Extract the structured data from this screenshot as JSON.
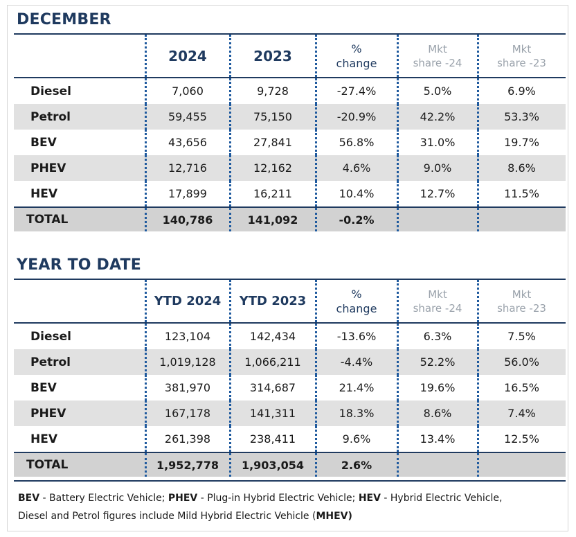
{
  "december": {
    "title": "DECEMBER",
    "headers": {
      "label": "",
      "col1": "2024",
      "col2": "2023",
      "col3_line1": "%",
      "col3_line2": "change",
      "col4_line1": "Mkt",
      "col4_line2": "share -24",
      "col5_line1": "Mkt",
      "col5_line2": "share -23"
    },
    "rows": [
      {
        "fuel": "Diesel",
        "v1": "7,060",
        "v2": "9,728",
        "pct": "-27.4%",
        "m1": "5.0%",
        "m2": "6.9%"
      },
      {
        "fuel": "Petrol",
        "v1": "59,455",
        "v2": "75,150",
        "pct": "-20.9%",
        "m1": "42.2%",
        "m2": "53.3%"
      },
      {
        "fuel": "BEV",
        "v1": "43,656",
        "v2": "27,841",
        "pct": "56.8%",
        "m1": "31.0%",
        "m2": "19.7%"
      },
      {
        "fuel": "PHEV",
        "v1": "12,716",
        "v2": "12,162",
        "pct": "4.6%",
        "m1": "9.0%",
        "m2": "8.6%"
      },
      {
        "fuel": "HEV",
        "v1": "17,899",
        "v2": "16,211",
        "pct": "10.4%",
        "m1": "12.7%",
        "m2": "11.5%"
      }
    ],
    "total": {
      "label": "TOTAL",
      "v1": "140,786",
      "v2": "141,092",
      "pct": "-0.2%"
    }
  },
  "ytd": {
    "title": "YEAR TO DATE",
    "headers": {
      "label": "",
      "col1": "YTD 2024",
      "col2": "YTD 2023",
      "col3_line1": "%",
      "col3_line2": "change",
      "col4_line1": "Mkt",
      "col4_line2": "share -24",
      "col5_line1": "Mkt",
      "col5_line2": "share -23"
    },
    "rows": [
      {
        "fuel": "Diesel",
        "v1": "123,104",
        "v2": "142,434",
        "pct": "-13.6%",
        "m1": "6.3%",
        "m2": "7.5%"
      },
      {
        "fuel": "Petrol",
        "v1": "1,019,128",
        "v2": "1,066,211",
        "pct": "-4.4%",
        "m1": "52.2%",
        "m2": "56.0%"
      },
      {
        "fuel": "BEV",
        "v1": "381,970",
        "v2": "314,687",
        "pct": "21.4%",
        "m1": "19.6%",
        "m2": "16.5%"
      },
      {
        "fuel": "PHEV",
        "v1": "167,178",
        "v2": "141,311",
        "pct": "18.3%",
        "m1": "8.6%",
        "m2": "7.4%"
      },
      {
        "fuel": "HEV",
        "v1": "261,398",
        "v2": "238,411",
        "pct": "9.6%",
        "m1": "13.4%",
        "m2": "12.5%"
      }
    ],
    "total": {
      "label": "TOTAL",
      "v1": "1,952,778",
      "v2": "1,903,054",
      "pct": "2.6%"
    }
  },
  "footer": {
    "bev_abbr": "BEV",
    "bev_text": " - Battery Electric Vehicle; ",
    "phev_abbr": "PHEV",
    "phev_text": " - Plug-in Hybrid Electric Vehicle; ",
    "hev_abbr": "HEV",
    "hev_text": " - Hybrid Electric Vehicle,",
    "line2_text": "Diesel and Petrol figures include Mild Hybrid Electric Vehicle (",
    "mhev_abbr": "MHEV)"
  },
  "colors": {
    "navy": "#1f3a5f",
    "separator_blue": "#1f5a9e",
    "shaded_row": "#e1e1e1",
    "total_row": "#d2d2d2",
    "muted_header": "#9aa2ab"
  }
}
